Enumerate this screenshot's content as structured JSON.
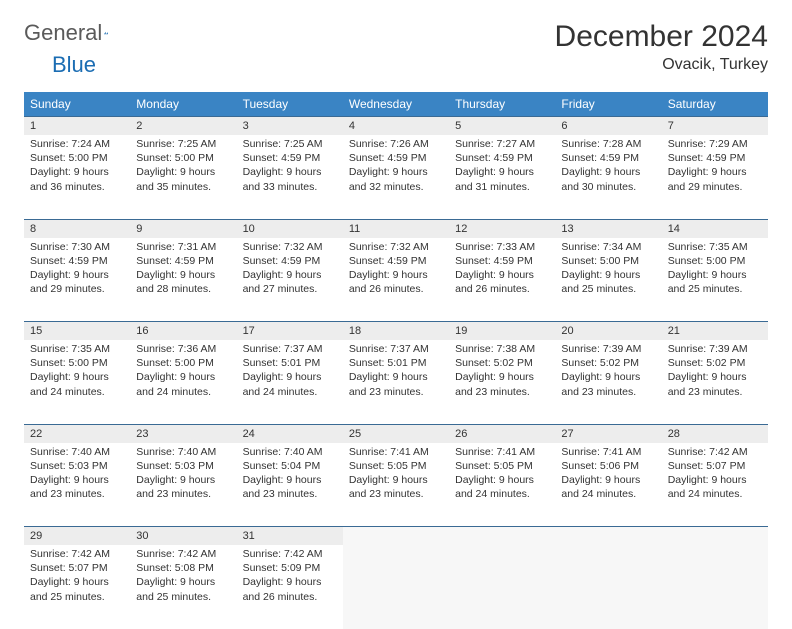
{
  "logo": {
    "word1": "General",
    "word2": "Blue"
  },
  "title": "December 2024",
  "location": "Ovacik, Turkey",
  "colors": {
    "header_bg": "#3a84c4",
    "header_text": "#ffffff",
    "daynum_bg": "#ededed",
    "border": "#3a6a94",
    "body_text": "#333333",
    "logo_gray": "#5a5a5a",
    "logo_blue": "#1b6db3"
  },
  "weekdays": [
    "Sunday",
    "Monday",
    "Tuesday",
    "Wednesday",
    "Thursday",
    "Friday",
    "Saturday"
  ],
  "weeks": [
    [
      {
        "n": "1",
        "sr": "7:24 AM",
        "ss": "5:00 PM",
        "dl": "9 hours and 36 minutes."
      },
      {
        "n": "2",
        "sr": "7:25 AM",
        "ss": "5:00 PM",
        "dl": "9 hours and 35 minutes."
      },
      {
        "n": "3",
        "sr": "7:25 AM",
        "ss": "4:59 PM",
        "dl": "9 hours and 33 minutes."
      },
      {
        "n": "4",
        "sr": "7:26 AM",
        "ss": "4:59 PM",
        "dl": "9 hours and 32 minutes."
      },
      {
        "n": "5",
        "sr": "7:27 AM",
        "ss": "4:59 PM",
        "dl": "9 hours and 31 minutes."
      },
      {
        "n": "6",
        "sr": "7:28 AM",
        "ss": "4:59 PM",
        "dl": "9 hours and 30 minutes."
      },
      {
        "n": "7",
        "sr": "7:29 AM",
        "ss": "4:59 PM",
        "dl": "9 hours and 29 minutes."
      }
    ],
    [
      {
        "n": "8",
        "sr": "7:30 AM",
        "ss": "4:59 PM",
        "dl": "9 hours and 29 minutes."
      },
      {
        "n": "9",
        "sr": "7:31 AM",
        "ss": "4:59 PM",
        "dl": "9 hours and 28 minutes."
      },
      {
        "n": "10",
        "sr": "7:32 AM",
        "ss": "4:59 PM",
        "dl": "9 hours and 27 minutes."
      },
      {
        "n": "11",
        "sr": "7:32 AM",
        "ss": "4:59 PM",
        "dl": "9 hours and 26 minutes."
      },
      {
        "n": "12",
        "sr": "7:33 AM",
        "ss": "4:59 PM",
        "dl": "9 hours and 26 minutes."
      },
      {
        "n": "13",
        "sr": "7:34 AM",
        "ss": "5:00 PM",
        "dl": "9 hours and 25 minutes."
      },
      {
        "n": "14",
        "sr": "7:35 AM",
        "ss": "5:00 PM",
        "dl": "9 hours and 25 minutes."
      }
    ],
    [
      {
        "n": "15",
        "sr": "7:35 AM",
        "ss": "5:00 PM",
        "dl": "9 hours and 24 minutes."
      },
      {
        "n": "16",
        "sr": "7:36 AM",
        "ss": "5:00 PM",
        "dl": "9 hours and 24 minutes."
      },
      {
        "n": "17",
        "sr": "7:37 AM",
        "ss": "5:01 PM",
        "dl": "9 hours and 24 minutes."
      },
      {
        "n": "18",
        "sr": "7:37 AM",
        "ss": "5:01 PM",
        "dl": "9 hours and 23 minutes."
      },
      {
        "n": "19",
        "sr": "7:38 AM",
        "ss": "5:02 PM",
        "dl": "9 hours and 23 minutes."
      },
      {
        "n": "20",
        "sr": "7:39 AM",
        "ss": "5:02 PM",
        "dl": "9 hours and 23 minutes."
      },
      {
        "n": "21",
        "sr": "7:39 AM",
        "ss": "5:02 PM",
        "dl": "9 hours and 23 minutes."
      }
    ],
    [
      {
        "n": "22",
        "sr": "7:40 AM",
        "ss": "5:03 PM",
        "dl": "9 hours and 23 minutes."
      },
      {
        "n": "23",
        "sr": "7:40 AM",
        "ss": "5:03 PM",
        "dl": "9 hours and 23 minutes."
      },
      {
        "n": "24",
        "sr": "7:40 AM",
        "ss": "5:04 PM",
        "dl": "9 hours and 23 minutes."
      },
      {
        "n": "25",
        "sr": "7:41 AM",
        "ss": "5:05 PM",
        "dl": "9 hours and 23 minutes."
      },
      {
        "n": "26",
        "sr": "7:41 AM",
        "ss": "5:05 PM",
        "dl": "9 hours and 24 minutes."
      },
      {
        "n": "27",
        "sr": "7:41 AM",
        "ss": "5:06 PM",
        "dl": "9 hours and 24 minutes."
      },
      {
        "n": "28",
        "sr": "7:42 AM",
        "ss": "5:07 PM",
        "dl": "9 hours and 24 minutes."
      }
    ],
    [
      {
        "n": "29",
        "sr": "7:42 AM",
        "ss": "5:07 PM",
        "dl": "9 hours and 25 minutes."
      },
      {
        "n": "30",
        "sr": "7:42 AM",
        "ss": "5:08 PM",
        "dl": "9 hours and 25 minutes."
      },
      {
        "n": "31",
        "sr": "7:42 AM",
        "ss": "5:09 PM",
        "dl": "9 hours and 26 minutes."
      },
      null,
      null,
      null,
      null
    ]
  ],
  "labels": {
    "sunrise": "Sunrise: ",
    "sunset": "Sunset: ",
    "daylight": "Daylight: "
  }
}
